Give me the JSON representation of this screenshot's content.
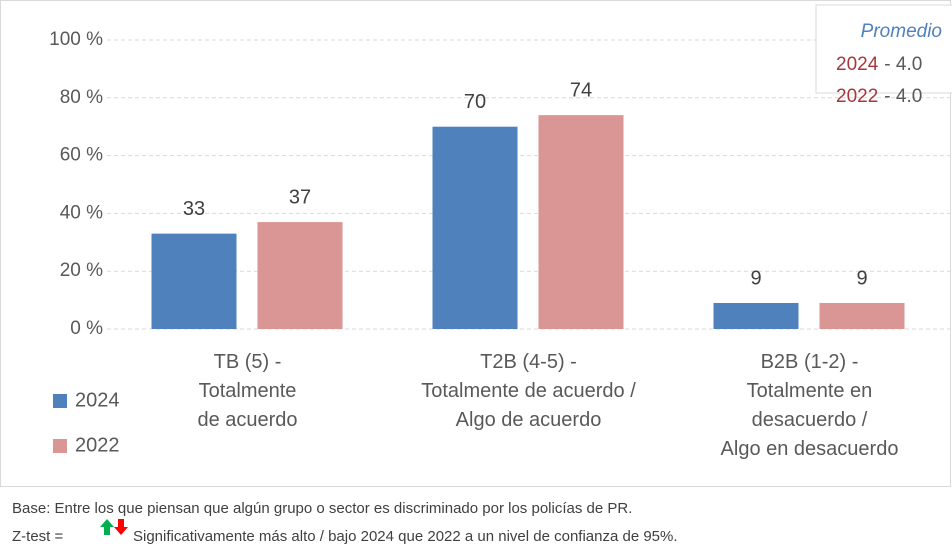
{
  "chart_data": {
    "type": "bar",
    "categories": [
      "TB (5) -\nTotalmente\nde acuerdo",
      "T2B (4-5) -\nTotalmente de acuerdo /\nAlgo de acuerdo",
      "B2B (1-2) -\nTotalmente en\ndesacuerdo /\nAlgo en desacuerdo"
    ],
    "series": [
      {
        "name": "2024",
        "color": "#4f81bd",
        "values": [
          33,
          70,
          9
        ]
      },
      {
        "name": "2022",
        "color": "#d99694",
        "values": [
          37,
          74,
          9
        ]
      }
    ],
    "ylim": [
      0,
      100
    ],
    "yticks": [
      {
        "value": 0,
        "label": "0 %"
      },
      {
        "value": 20,
        "label": "20 %"
      },
      {
        "value": 40,
        "label": "40 %"
      },
      {
        "value": 60,
        "label": "60 %"
      },
      {
        "value": 80,
        "label": "80 %"
      },
      {
        "value": 100,
        "label": "100 %"
      }
    ],
    "grid": true,
    "legend": "bottom-left",
    "average_box": {
      "title": "Promedio",
      "items": [
        {
          "label": "2024",
          "text": "- 4.0"
        },
        {
          "label": "2022",
          "text": "- 4.0"
        }
      ]
    },
    "notes": {
      "base": "Base: Entre los que piensan que algún grupo o sector es discriminado por los policías de PR.",
      "ztest_label": "Z-test =",
      "ztest_text": "Significativamente más alto / bajo 2024 que 2022 a un nivel de confianza de 95%."
    }
  }
}
